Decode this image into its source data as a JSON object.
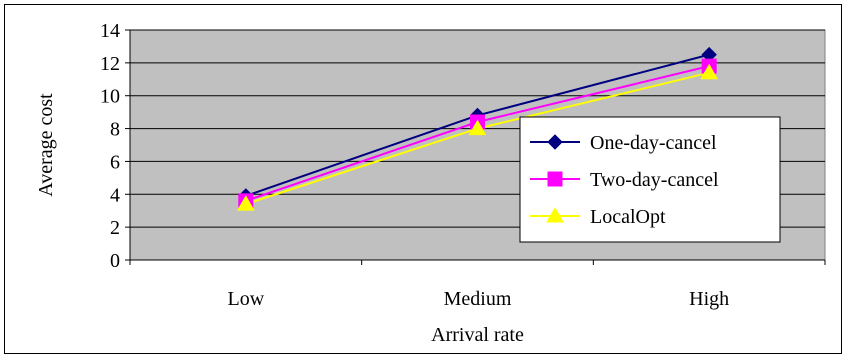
{
  "chart_data": {
    "type": "line",
    "title": "",
    "xlabel": "Arrival rate",
    "ylabel": "Average cost",
    "categories": [
      "Low",
      "Medium",
      "High"
    ],
    "ylim": [
      0,
      14
    ],
    "yticks": [
      0,
      2,
      4,
      6,
      8,
      10,
      12,
      14
    ],
    "grid": true,
    "legend_position": "right",
    "plot_background": "#c0c0c0",
    "series": [
      {
        "name": "One-day-cancel",
        "values": [
          3.9,
          8.8,
          12.5
        ],
        "color": "#000080",
        "marker": "diamond"
      },
      {
        "name": "Two-day-cancel",
        "values": [
          3.6,
          8.4,
          11.8
        ],
        "color": "#ff00ff",
        "marker": "square"
      },
      {
        "name": "LocalOpt",
        "values": [
          3.4,
          8.0,
          11.4
        ],
        "color": "#ffff00",
        "marker": "triangle"
      }
    ]
  }
}
